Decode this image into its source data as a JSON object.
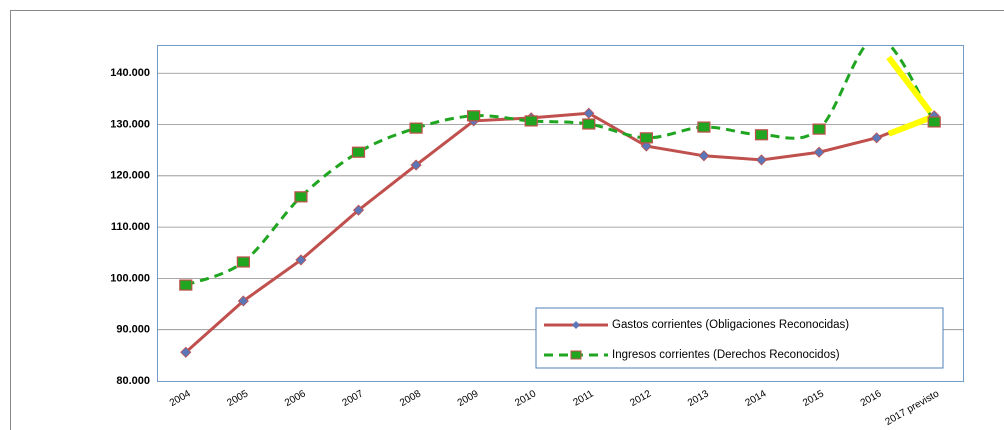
{
  "chart_data": {
    "type": "line",
    "categories": [
      "2004",
      "2005",
      "2006",
      "2007",
      "2008",
      "2009",
      "2010",
      "2011",
      "2012",
      "2013",
      "2014",
      "2015",
      "2016",
      "2017 previsto"
    ],
    "series": [
      {
        "name": "Gastos corrientes (Obligaciones Reconocidas)",
        "color": "#c0504d",
        "marker": "diamond",
        "marker_color": "#5b77b8",
        "dash": false,
        "smooth": false,
        "values": [
          85600,
          95600,
          103600,
          113300,
          122100,
          130700,
          131300,
          132200,
          125800,
          123900,
          123100,
          124600,
          127400,
          131700
        ]
      },
      {
        "name": "Ingresos corrientes (Derechos Reconocidos)",
        "color": "#1fa51f",
        "marker": "square",
        "marker_color": "#1fa51f",
        "dash": true,
        "smooth": true,
        "values": [
          98700,
          103200,
          115900,
          124600,
          129300,
          131700,
          130700,
          130100,
          127400,
          129500,
          128000,
          129100,
          147000,
          130500
        ]
      }
    ],
    "highlight_color": "#ffff00",
    "ylim": [
      80000,
      145500
    ],
    "yticks": [
      {
        "value": 80000,
        "label": "80.000"
      },
      {
        "value": 90000,
        "label": "90.000"
      },
      {
        "value": 100000,
        "label": "100.000"
      },
      {
        "value": 110000,
        "label": "110.000"
      },
      {
        "value": 120000,
        "label": "120.000"
      },
      {
        "value": 130000,
        "label": "130.000"
      },
      {
        "value": 140000,
        "label": "140.000"
      }
    ],
    "grid": true,
    "legend": "bottom-right"
  }
}
